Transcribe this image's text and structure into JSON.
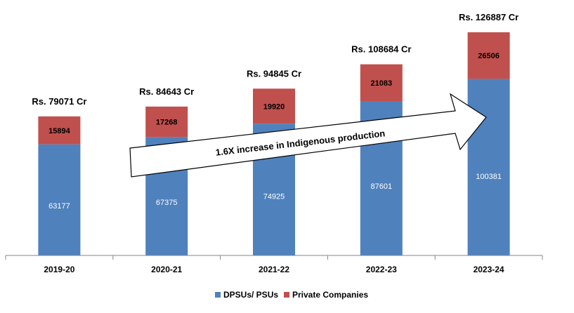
{
  "chart_data": {
    "type": "bar",
    "stacked": true,
    "categories": [
      "2019-20",
      "2020-21",
      "2021-22",
      "2022-23",
      "2023-24"
    ],
    "series": [
      {
        "name": "DPSUs/ PSUs",
        "values": [
          63177,
          67375,
          74925,
          87601,
          100381
        ],
        "color": "#4f81bd"
      },
      {
        "name": "Private Companies",
        "values": [
          15894,
          17268,
          19920,
          21083,
          26506
        ],
        "color": "#c0504d"
      }
    ],
    "totals": [
      "Rs. 79071 Cr",
      "Rs. 84643 Cr",
      "Rs. 94845 Cr",
      "Rs. 108684 Cr",
      "Rs.  126887 Cr"
    ],
    "annotation": "1.6X increase in Indigenous production",
    "ylim": [
      0,
      126887
    ],
    "grid": false,
    "legend_position": "bottom"
  }
}
